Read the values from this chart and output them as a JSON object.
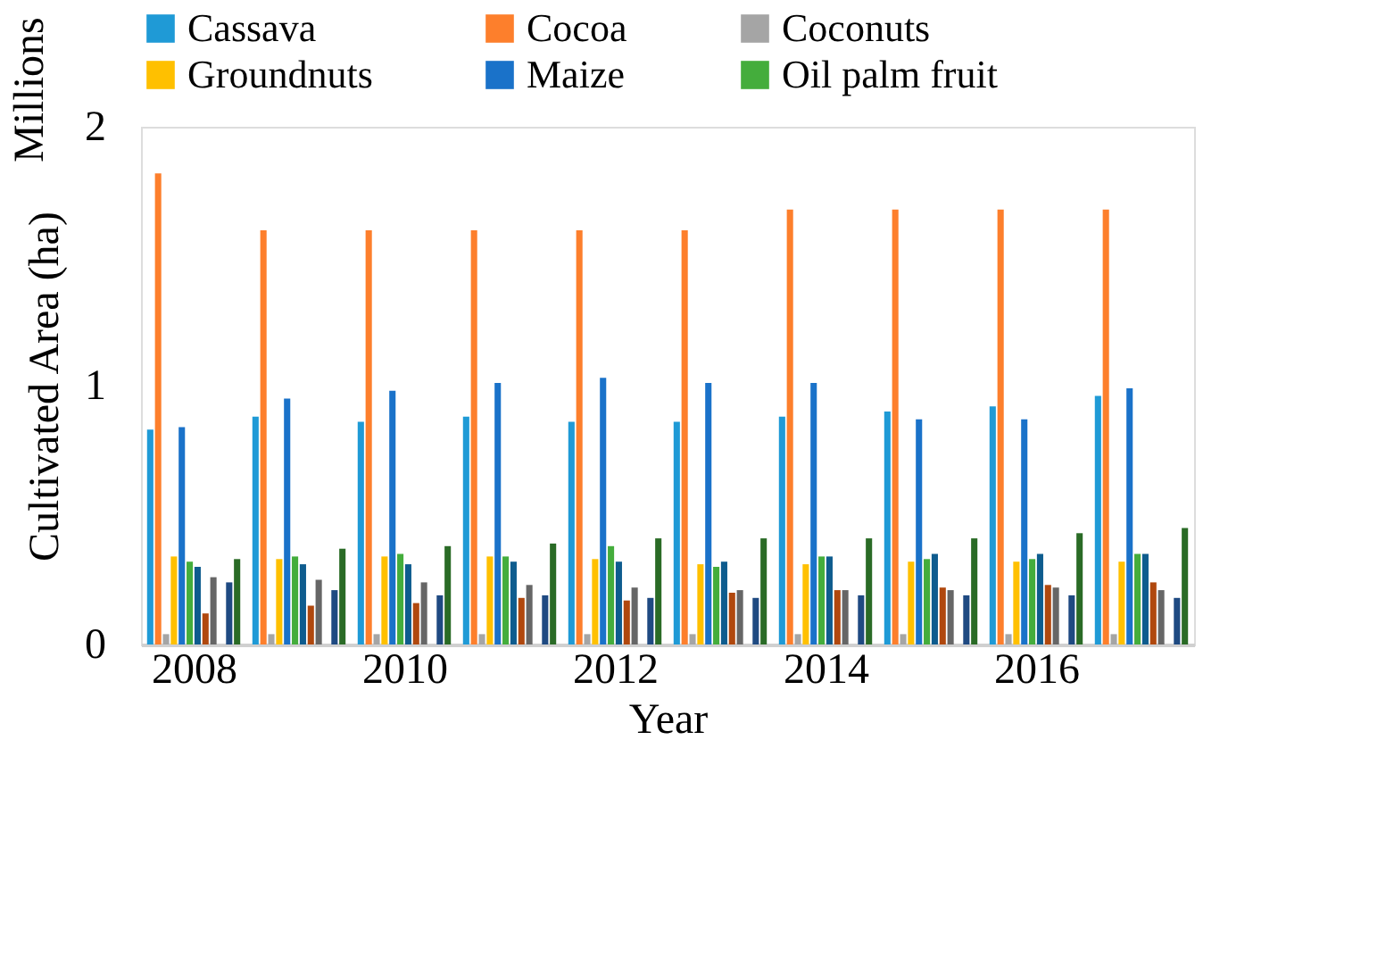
{
  "chart_data": {
    "type": "bar",
    "xlabel": "Year",
    "ylabel": "Cultivated Area (ha)",
    "annotations": [
      "Millions"
    ],
    "categories": [
      "2008",
      null,
      "2010",
      null,
      "2012",
      null,
      "2014",
      null,
      "2016",
      null
    ],
    "series": [
      {
        "name": "Cassava",
        "color": "#1f9ad6",
        "values": [
          0.83,
          0.88,
          0.86,
          0.88,
          0.86,
          0.86,
          0.88,
          0.9,
          0.92,
          0.96
        ]
      },
      {
        "name": "Cocoa",
        "color": "#fd7f2c",
        "values": [
          1.82,
          1.6,
          1.6,
          1.6,
          1.6,
          1.6,
          1.68,
          1.68,
          1.68,
          1.68
        ]
      },
      {
        "name": "Coconuts",
        "color": "#a5a5a5",
        "values": [
          0.04,
          0.04,
          0.04,
          0.04,
          0.04,
          0.04,
          0.04,
          0.04,
          0.04,
          0.04
        ]
      },
      {
        "name": "Groundnuts",
        "color": "#ffc000",
        "values": [
          0.34,
          0.33,
          0.34,
          0.34,
          0.33,
          0.31,
          0.31,
          0.32,
          0.32,
          0.32
        ]
      },
      {
        "name": "Maize",
        "color": "#1a72c9",
        "values": [
          0.84,
          0.95,
          0.98,
          1.01,
          1.03,
          1.01,
          1.01,
          0.87,
          0.87,
          0.99
        ]
      },
      {
        "name": "Oil palm fruit",
        "color": "#44ad3c",
        "values": [
          0.32,
          0.34,
          0.35,
          0.34,
          0.38,
          0.3,
          0.34,
          0.33,
          0.33,
          0.35
        ]
      },
      {
        "color": "#0e5c8e",
        "values": [
          0.3,
          0.31,
          0.31,
          0.32,
          0.32,
          0.32,
          0.34,
          0.35,
          0.35,
          0.35
        ]
      },
      {
        "color": "#b0480e",
        "values": [
          0.12,
          0.15,
          0.16,
          0.18,
          0.17,
          0.2,
          0.21,
          0.22,
          0.23,
          0.24
        ]
      },
      {
        "color": "#666666",
        "values": [
          0.26,
          0.25,
          0.24,
          0.23,
          0.22,
          0.21,
          0.21,
          0.21,
          0.22,
          0.21
        ]
      },
      {
        "color": "#997300",
        "values": [
          null,
          null,
          null,
          null,
          null,
          null,
          null,
          null,
          null,
          null
        ]
      },
      {
        "color": "#1f4a82",
        "values": [
          0.24,
          0.21,
          0.19,
          0.19,
          0.18,
          0.18,
          0.19,
          0.19,
          0.19,
          0.18
        ]
      },
      {
        "color": "#2a6b26",
        "values": [
          0.33,
          0.37,
          0.38,
          0.39,
          0.41,
          0.41,
          0.41,
          0.41,
          0.43,
          0.45
        ]
      }
    ],
    "ylim": [
      0,
      2
    ],
    "yticks": [
      0,
      1,
      2
    ],
    "grid": false,
    "legend": "top"
  }
}
